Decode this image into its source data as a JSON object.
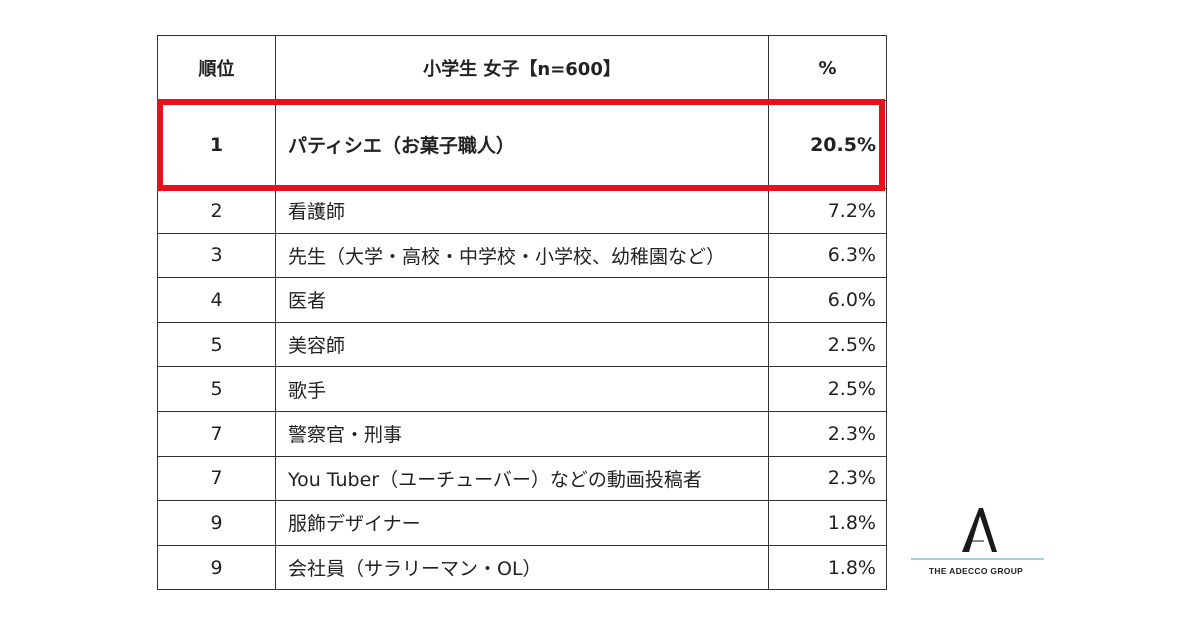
{
  "table": {
    "headers": {
      "rank": "順位",
      "job": "小学生 女子【n=600】",
      "percent": "%"
    },
    "rows": [
      {
        "rank": "1",
        "job": "パティシエ（お菓子職人）",
        "percent": "20.5%",
        "highlighted": true
      },
      {
        "rank": "2",
        "job": "看護師",
        "percent": "7.2%"
      },
      {
        "rank": "3",
        "job": "先生（大学・高校・中学校・小学校、幼稚園など）",
        "percent": "6.3%"
      },
      {
        "rank": "4",
        "job": "医者",
        "percent": "6.0%"
      },
      {
        "rank": "5",
        "job": "美容師",
        "percent": "2.5%"
      },
      {
        "rank": "5",
        "job": "歌手",
        "percent": "2.5%"
      },
      {
        "rank": "7",
        "job": "警察官・刑事",
        "percent": "2.3%"
      },
      {
        "rank": "7",
        "job": "You Tuber（ユーチューバー）などの動画投稿者",
        "percent": "2.3%"
      },
      {
        "rank": "9",
        "job": "服飾デザイナー",
        "percent": "1.8%"
      },
      {
        "rank": "9",
        "job": "会社員（サラリーマン・OL）",
        "percent": "1.8%"
      }
    ]
  },
  "highlight_color": "#e8101a",
  "logo": {
    "name": "adecco-a-mark",
    "text": "THE ADECCO GROUP"
  }
}
